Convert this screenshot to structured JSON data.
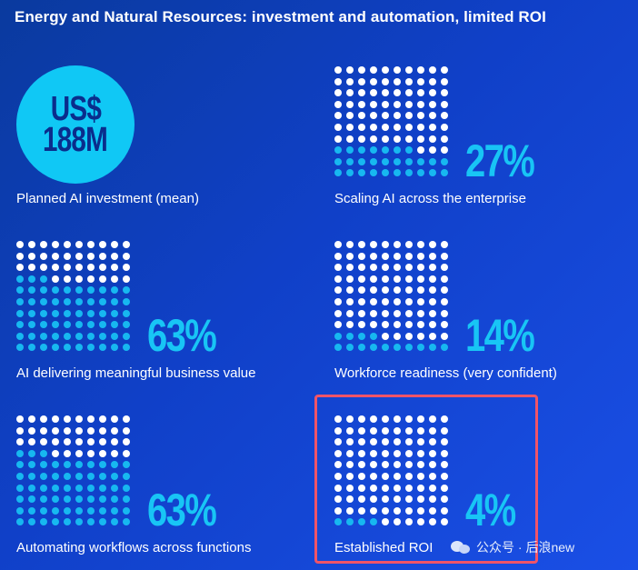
{
  "title": "Energy and Natural Resources: investment and automation, limited ROI",
  "investment": {
    "line1": "US$",
    "line2": "188M",
    "label": "Planned AI investment (mean)"
  },
  "metrics": [
    {
      "id": "scaling",
      "percent": "27%",
      "value": 27,
      "label": "Scaling AI across the enterprise"
    },
    {
      "id": "business-value",
      "percent": "63%",
      "value": 63,
      "label": "AI delivering meaningful business value"
    },
    {
      "id": "workforce",
      "percent": "14%",
      "value": 14,
      "label": "Workforce readiness (very confident)"
    },
    {
      "id": "workflows",
      "percent": "63%",
      "value": 63,
      "label": "Automating workflows across functions"
    },
    {
      "id": "roi",
      "percent": "4%",
      "value": 4,
      "label": "Established ROI"
    }
  ],
  "colors": {
    "accent": "#18c5f5",
    "dot_empty": "#ffffff",
    "highlight": "#f05468"
  },
  "watermark": {
    "text": "公众号 · 后浪new"
  }
}
